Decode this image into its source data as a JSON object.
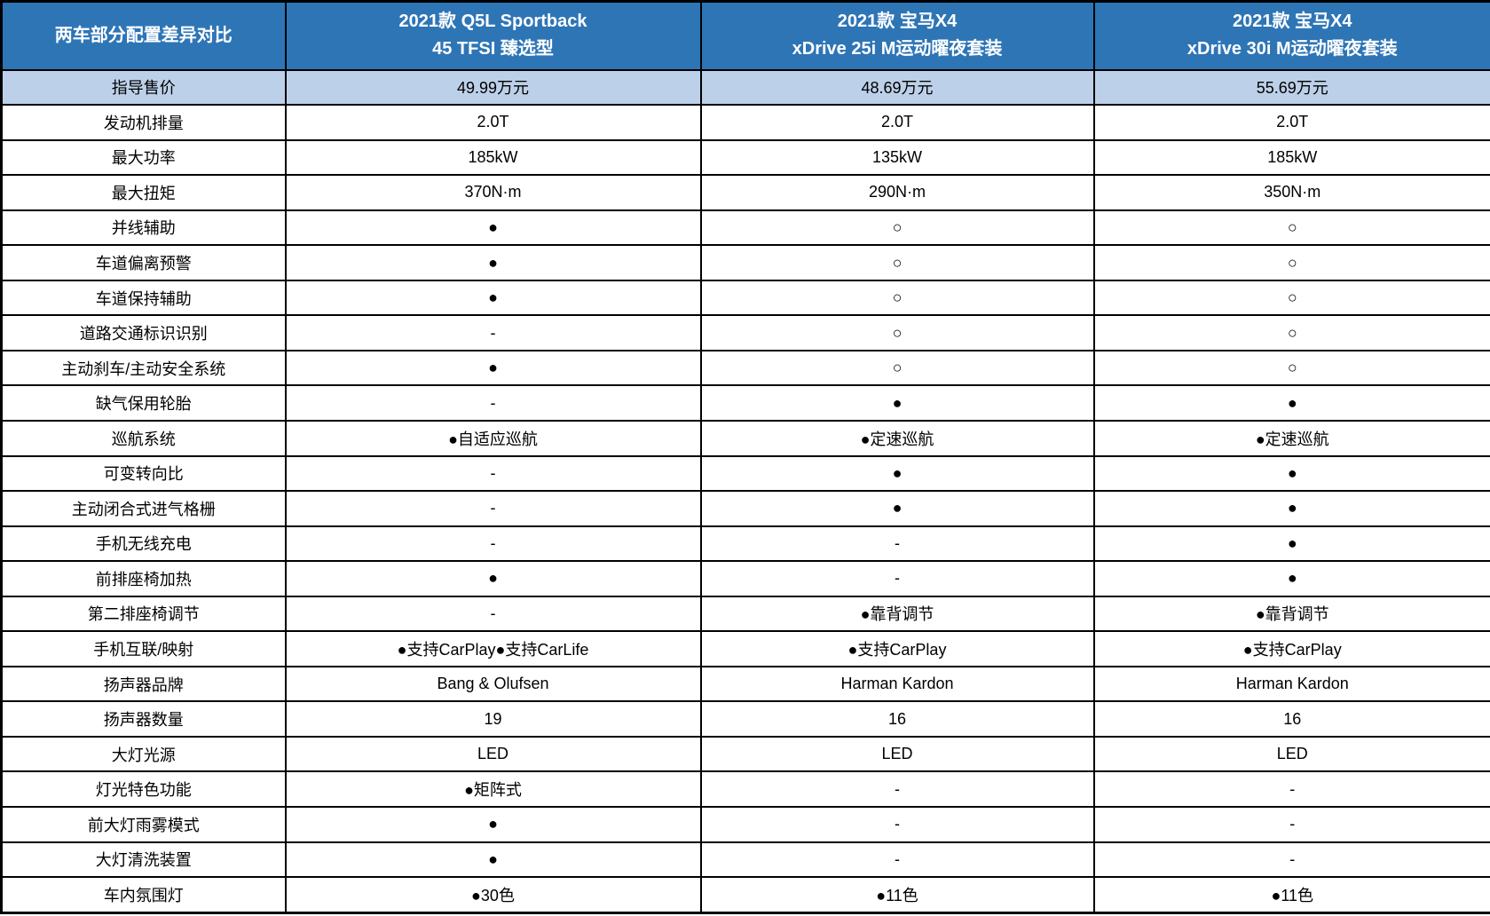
{
  "colors": {
    "header_bg": "#2E75B6",
    "header_text": "#FFFFFF",
    "highlight_row_bg": "#BDD0E9",
    "body_text": "#000000",
    "border": "#000000"
  },
  "chart_data": {
    "type": "table",
    "title": "两车部分配置差异对比",
    "corner_header": "两车部分配置差异对比",
    "column_headers": [
      {
        "line1": "2021款 Q5L Sportback",
        "line2": "45 TFSI 臻选型"
      },
      {
        "line1": "2021款 宝马X4",
        "line2": "xDrive 25i M运动曜夜套装"
      },
      {
        "line1": "2021款 宝马X4",
        "line2": "xDrive 30i M运动曜夜套装"
      }
    ],
    "symbols": {
      "filled_circle": "●",
      "open_circle": "○",
      "not_available": "-"
    },
    "rows": [
      {
        "label": "指导售价",
        "highlight": true,
        "values": [
          "49.99万元",
          "48.69万元",
          "55.69万元"
        ]
      },
      {
        "label": "发动机排量",
        "values": [
          "2.0T",
          "2.0T",
          "2.0T"
        ]
      },
      {
        "label": "最大功率",
        "values": [
          "185kW",
          "135kW",
          "185kW"
        ]
      },
      {
        "label": "最大扭矩",
        "values": [
          "370N·m",
          "290N·m",
          "350N·m"
        ]
      },
      {
        "label": "并线辅助",
        "values": [
          "●",
          "○",
          "○"
        ]
      },
      {
        "label": "车道偏离预警",
        "values": [
          "●",
          "○",
          "○"
        ]
      },
      {
        "label": "车道保持辅助",
        "values": [
          "●",
          "○",
          "○"
        ]
      },
      {
        "label": "道路交通标识识别",
        "values": [
          "-",
          "○",
          "○"
        ]
      },
      {
        "label": "主动刹车/主动安全系统",
        "values": [
          "●",
          "○",
          "○"
        ]
      },
      {
        "label": "缺气保用轮胎",
        "values": [
          "-",
          "●",
          "●"
        ]
      },
      {
        "label": "巡航系统",
        "values": [
          "●自适应巡航",
          "●定速巡航",
          "●定速巡航"
        ]
      },
      {
        "label": "可变转向比",
        "values": [
          "-",
          "●",
          "●"
        ]
      },
      {
        "label": "主动闭合式进气格栅",
        "values": [
          "-",
          "●",
          "●"
        ]
      },
      {
        "label": "手机无线充电",
        "values": [
          "-",
          "-",
          "●"
        ]
      },
      {
        "label": "前排座椅加热",
        "values": [
          "●",
          "-",
          "●"
        ]
      },
      {
        "label": "第二排座椅调节",
        "values": [
          "-",
          "●靠背调节",
          "●靠背调节"
        ]
      },
      {
        "label": "手机互联/映射",
        "values": [
          "●支持CarPlay●支持CarLife",
          "●支持CarPlay",
          "●支持CarPlay"
        ]
      },
      {
        "label": "扬声器品牌",
        "values": [
          "Bang & Olufsen",
          "Harman Kardon",
          "Harman Kardon"
        ]
      },
      {
        "label": "扬声器数量",
        "values": [
          "19",
          "16",
          "16"
        ]
      },
      {
        "label": "大灯光源",
        "values": [
          "LED",
          "LED",
          "LED"
        ]
      },
      {
        "label": "灯光特色功能",
        "values": [
          "●矩阵式",
          "-",
          "-"
        ]
      },
      {
        "label": "前大灯雨雾模式",
        "values": [
          "●",
          "-",
          "-"
        ]
      },
      {
        "label": "大灯清洗装置",
        "values": [
          "●",
          "-",
          "-"
        ]
      },
      {
        "label": "车内氛围灯",
        "values": [
          "●30色",
          "●11色",
          "●11色"
        ]
      }
    ]
  }
}
